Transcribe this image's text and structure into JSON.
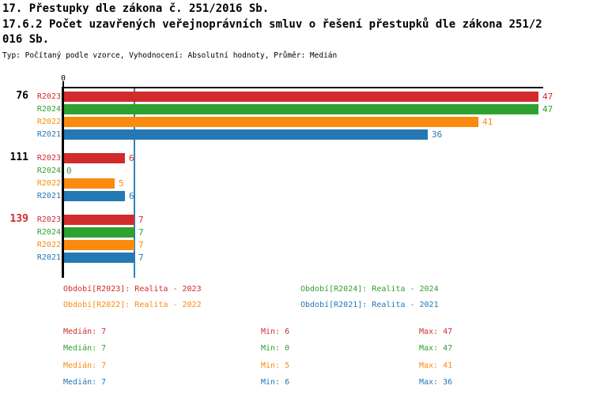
{
  "header": {
    "title_lines": [
      "17. Přestupky dle zákona č. 251/2016 Sb.",
      "17.6.2 Počet uzavřených veřejnoprávních smluv o řešení přestupků dle zákona 251/2",
      "016 Sb."
    ],
    "subtitle": "Typ: Počítaný podle vzorce, Vyhodnocení: Absolutní hodnoty, Průměr: Medián"
  },
  "palette": {
    "red": "#d22b2b",
    "green": "#2fa12f",
    "orange": "#fb8a0e",
    "blue": "#2478b4",
    "black": "#000000",
    "median_line": "#2e82bb"
  },
  "chart_data": {
    "type": "bar",
    "orientation": "horizontal",
    "title": "17.6.2 Počet uzavřených veřejnoprávních smluv o řešení přestupků dle zákona 251/2016 Sb.",
    "x_axis": {
      "origin_label": "0",
      "xlim": [
        0,
        47.5
      ],
      "grid": false
    },
    "median_line_value": 7,
    "groups": [
      {
        "label": "76",
        "label_color": "black",
        "rows": [
          {
            "series": "R2023",
            "color": "red",
            "value": 47
          },
          {
            "series": "R2024",
            "color": "green",
            "value": 47
          },
          {
            "series": "R2022",
            "color": "orange",
            "value": 41
          },
          {
            "series": "R2021",
            "color": "blue",
            "value": 36
          }
        ]
      },
      {
        "label": "111",
        "label_color": "black",
        "rows": [
          {
            "series": "R2023",
            "color": "red",
            "value": 6
          },
          {
            "series": "R2024",
            "color": "green",
            "value": 0
          },
          {
            "series": "R2022",
            "color": "orange",
            "value": 5
          },
          {
            "series": "R2021",
            "color": "blue",
            "value": 6
          }
        ]
      },
      {
        "label": "139",
        "label_color": "red",
        "rows": [
          {
            "series": "R2023",
            "color": "red",
            "value": 7
          },
          {
            "series": "R2024",
            "color": "green",
            "value": 7
          },
          {
            "series": "R2022",
            "color": "orange",
            "value": 7
          },
          {
            "series": "R2021",
            "color": "blue",
            "value": 7
          }
        ]
      }
    ]
  },
  "legend": {
    "items": [
      {
        "text": "Období[R2023]: Realita - 2023",
        "color": "red"
      },
      {
        "text": "Období[R2024]: Realita - 2024",
        "color": "green"
      },
      {
        "text": "Období[R2022]: Realita - 2022",
        "color": "orange"
      },
      {
        "text": "Období[R2021]: Realita - 2021",
        "color": "blue"
      }
    ]
  },
  "stats": {
    "rows": [
      {
        "median": "Medián: 7",
        "min": "Min: 6",
        "max": "Max: 47",
        "color": "red"
      },
      {
        "median": "Medián: 7",
        "min": "Min: 0",
        "max": "Max: 47",
        "color": "green"
      },
      {
        "median": "Medián: 7",
        "min": "Min: 5",
        "max": "Max: 41",
        "color": "orange"
      },
      {
        "median": "Medián: 7",
        "min": "Min: 6",
        "max": "Max: 36",
        "color": "blue"
      }
    ]
  }
}
